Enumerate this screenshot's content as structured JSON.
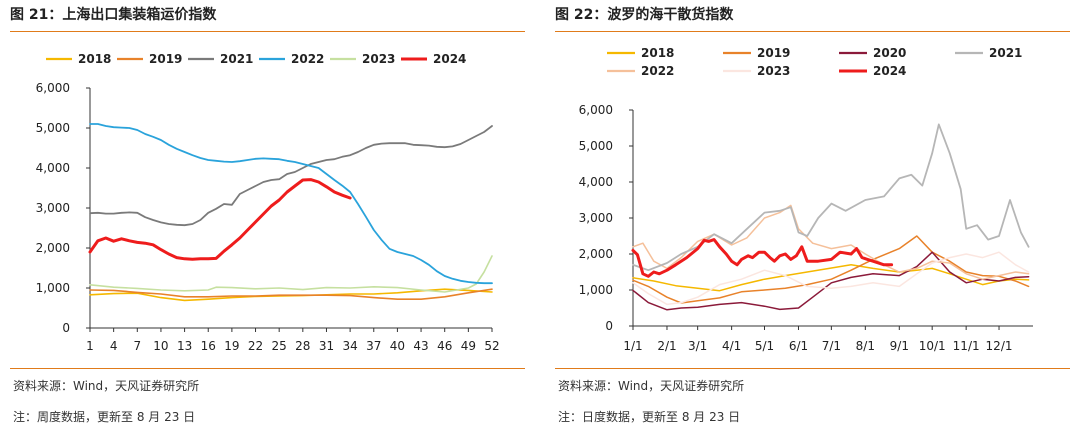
{
  "charts": [
    {
      "title": "图 21：上海出口集装箱运价指数",
      "source": "资料来源：Wind，天风证券研究所",
      "note": "注：周度数据，更新至 8 月 23 日"
    },
    {
      "title": "图 22：波罗的海干散货指数",
      "source": "资料来源：Wind，天风证券研究所",
      "note": "注：日度数据，更新至 8 月 23 日"
    }
  ],
  "chart_data": [
    {
      "type": "line",
      "title": "",
      "xlabel": "",
      "ylabel": "",
      "x_ticks": [
        1,
        4,
        7,
        10,
        13,
        16,
        19,
        22,
        25,
        28,
        31,
        34,
        37,
        40,
        43,
        46,
        49,
        52
      ],
      "xlim": [
        1,
        52
      ],
      "ylim": [
        0,
        6000
      ],
      "y_ticks": [
        "0",
        "1,000",
        "2,000",
        "3,000",
        "4,000",
        "5,000",
        "6,000"
      ],
      "y_tick_values": [
        0,
        1000,
        2000,
        3000,
        4000,
        5000,
        6000
      ],
      "grid": false,
      "legend": "top",
      "series": [
        {
          "name": "2018",
          "color": "#f5b800",
          "width": 1.6,
          "x": [
            1,
            4,
            7,
            10,
            13,
            16,
            19,
            22,
            25,
            28,
            31,
            34,
            37,
            40,
            43,
            46,
            49,
            52
          ],
          "y": [
            830,
            860,
            870,
            760,
            690,
            720,
            760,
            790,
            800,
            810,
            830,
            850,
            850,
            880,
            930,
            970,
            940,
            900
          ]
        },
        {
          "name": "2019",
          "color": "#e8822a",
          "width": 1.6,
          "x": [
            1,
            4,
            7,
            10,
            13,
            16,
            19,
            22,
            25,
            28,
            31,
            34,
            37,
            40,
            43,
            46,
            49,
            52
          ],
          "y": [
            950,
            940,
            890,
            850,
            780,
            780,
            800,
            800,
            820,
            820,
            820,
            810,
            760,
            720,
            720,
            780,
            880,
            970
          ]
        },
        {
          "name": "2021",
          "color": "#7a7a7a",
          "width": 1.8,
          "x": [
            1,
            2,
            3,
            4,
            5,
            6,
            7,
            8,
            9,
            10,
            11,
            12,
            13,
            14,
            15,
            16,
            17,
            18,
            19,
            20,
            21,
            22,
            23,
            24,
            25,
            26,
            27,
            28,
            29,
            30,
            31,
            32,
            33,
            34,
            35,
            36,
            37,
            38,
            39,
            40,
            41,
            42,
            43,
            44,
            45,
            46,
            47,
            48,
            49,
            50,
            51,
            52
          ],
          "y": [
            2870,
            2880,
            2860,
            2860,
            2880,
            2890,
            2880,
            2770,
            2700,
            2640,
            2600,
            2580,
            2570,
            2600,
            2700,
            2880,
            2980,
            3100,
            3080,
            3350,
            3450,
            3550,
            3650,
            3700,
            3720,
            3850,
            3900,
            4000,
            4100,
            4150,
            4200,
            4220,
            4280,
            4320,
            4400,
            4500,
            4580,
            4610,
            4620,
            4620,
            4620,
            4580,
            4570,
            4560,
            4530,
            4520,
            4540,
            4600,
            4700,
            4800,
            4900,
            5050
          ]
        },
        {
          "name": "2022",
          "color": "#2aa3db",
          "width": 1.8,
          "x": [
            1,
            2,
            3,
            4,
            5,
            6,
            7,
            8,
            9,
            10,
            11,
            12,
            13,
            14,
            15,
            16,
            17,
            18,
            19,
            20,
            21,
            22,
            23,
            24,
            25,
            26,
            27,
            28,
            29,
            30,
            31,
            32,
            33,
            34,
            35,
            36,
            37,
            38,
            39,
            40,
            41,
            42,
            43,
            44,
            45,
            46,
            47,
            48,
            49,
            50,
            51,
            52
          ],
          "y": [
            5100,
            5100,
            5050,
            5020,
            5010,
            5000,
            4950,
            4850,
            4780,
            4700,
            4580,
            4480,
            4400,
            4320,
            4250,
            4200,
            4180,
            4160,
            4150,
            4170,
            4200,
            4230,
            4240,
            4230,
            4220,
            4180,
            4150,
            4100,
            4050,
            4000,
            3850,
            3700,
            3560,
            3400,
            3100,
            2780,
            2450,
            2200,
            1980,
            1900,
            1850,
            1800,
            1700,
            1580,
            1420,
            1300,
            1230,
            1180,
            1150,
            1130,
            1120,
            1120
          ]
        },
        {
          "name": "2023",
          "color": "#c6e0a0",
          "width": 1.6,
          "x": [
            1,
            4,
            7,
            10,
            13,
            16,
            17,
            19,
            22,
            25,
            28,
            31,
            34,
            37,
            40,
            43,
            46,
            49,
            50,
            51,
            52
          ],
          "y": [
            1080,
            1020,
            990,
            950,
            930,
            950,
            1020,
            1010,
            980,
            1000,
            960,
            1010,
            1000,
            1030,
            1010,
            950,
            900,
            1000,
            1100,
            1400,
            1800
          ]
        },
        {
          "name": "2024",
          "color": "#ee1c1c",
          "width": 3,
          "x": [
            1,
            2,
            3,
            4,
            5,
            6,
            7,
            8,
            9,
            10,
            11,
            12,
            13,
            14,
            15,
            16,
            17,
            18,
            19,
            20,
            21,
            22,
            23,
            24,
            25,
            26,
            27,
            28,
            29,
            30,
            31,
            32,
            33,
            34
          ],
          "y": [
            1900,
            2180,
            2250,
            2170,
            2230,
            2180,
            2140,
            2120,
            2080,
            1960,
            1850,
            1760,
            1730,
            1720,
            1730,
            1730,
            1740,
            1920,
            2080,
            2250,
            2450,
            2650,
            2850,
            3050,
            3200,
            3400,
            3550,
            3700,
            3710,
            3650,
            3530,
            3400,
            3320,
            3250
          ]
        }
      ]
    },
    {
      "type": "line",
      "title": "",
      "xlabel": "",
      "ylabel": "",
      "x_ticks": [
        "1/1",
        "2/1",
        "3/1",
        "4/1",
        "5/1",
        "6/1",
        "7/1",
        "8/1",
        "9/1",
        "10/1",
        "11/1",
        "12/1"
      ],
      "x_tick_values": [
        1,
        32,
        60,
        91,
        121,
        152,
        182,
        213,
        244,
        274,
        305,
        335
      ],
      "xlim": [
        1,
        366
      ],
      "ylim": [
        0,
        6000
      ],
      "y_ticks": [
        "0",
        "1,000",
        "2,000",
        "3,000",
        "4,000",
        "5,000",
        "6,000"
      ],
      "y_tick_values": [
        0,
        1000,
        2000,
        3000,
        4000,
        5000,
        6000
      ],
      "grid": false,
      "legend": "top",
      "series": [
        {
          "name": "2018",
          "color": "#f5b800",
          "width": 1.5,
          "x": [
            1,
            20,
            40,
            60,
            80,
            100,
            121,
            140,
            160,
            180,
            200,
            220,
            244,
            260,
            274,
            290,
            305,
            320,
            335,
            350,
            362
          ],
          "y": [
            1340,
            1250,
            1120,
            1050,
            980,
            1150,
            1300,
            1400,
            1500,
            1600,
            1700,
            1600,
            1500,
            1550,
            1600,
            1450,
            1300,
            1150,
            1250,
            1300,
            1280
          ]
        },
        {
          "name": "2019",
          "color": "#e8822a",
          "width": 1.5,
          "x": [
            1,
            15,
            32,
            45,
            60,
            80,
            100,
            121,
            140,
            160,
            182,
            200,
            220,
            244,
            260,
            274,
            290,
            305,
            320,
            335,
            350,
            362
          ],
          "y": [
            1270,
            1100,
            800,
            640,
            700,
            780,
            950,
            1000,
            1050,
            1150,
            1300,
            1550,
            1850,
            2150,
            2500,
            2050,
            1800,
            1500,
            1400,
            1380,
            1250,
            1100
          ]
        },
        {
          "name": "2020",
          "color": "#8b1a3a",
          "width": 1.5,
          "x": [
            1,
            15,
            32,
            45,
            60,
            80,
            100,
            121,
            135,
            152,
            165,
            182,
            200,
            220,
            244,
            260,
            274,
            290,
            305,
            320,
            335,
            350,
            362
          ],
          "y": [
            990,
            650,
            450,
            500,
            520,
            600,
            650,
            550,
            460,
            500,
            800,
            1200,
            1350,
            1450,
            1400,
            1650,
            2050,
            1500,
            1200,
            1300,
            1250,
            1350,
            1370
          ]
        },
        {
          "name": "2021",
          "color": "#b6b6b6",
          "width": 1.8,
          "x": [
            1,
            15,
            32,
            45,
            60,
            75,
            91,
            105,
            121,
            135,
            145,
            152,
            160,
            170,
            182,
            195,
            213,
            230,
            244,
            255,
            265,
            274,
            280,
            290,
            300,
            305,
            315,
            325,
            335,
            345,
            355,
            362
          ],
          "y": [
            1700,
            1550,
            1750,
            2000,
            2200,
            2550,
            2300,
            2700,
            3150,
            3200,
            3300,
            2600,
            2500,
            3000,
            3400,
            3200,
            3500,
            3600,
            4100,
            4200,
            3900,
            4800,
            5600,
            4800,
            3800,
            2700,
            2800,
            2400,
            2500,
            3500,
            2600,
            2200
          ]
        },
        {
          "name": "2022",
          "color": "#f5c09a",
          "width": 1.5,
          "x": [
            1,
            10,
            20,
            32,
            45,
            60,
            75,
            91,
            105,
            121,
            135,
            145,
            152,
            165,
            182,
            200,
            213,
            230,
            244,
            260,
            274,
            290,
            305,
            320,
            335,
            350,
            362
          ],
          "y": [
            2200,
            2300,
            1800,
            1600,
            1900,
            2350,
            2550,
            2250,
            2450,
            3000,
            3150,
            3350,
            2700,
            2300,
            2150,
            2250,
            2000,
            1700,
            1500,
            1600,
            1800,
            1750,
            1450,
            1300,
            1400,
            1500,
            1450
          ]
        },
        {
          "name": "2023",
          "color": "#fbe6e0",
          "width": 1.5,
          "x": [
            1,
            15,
            32,
            45,
            60,
            80,
            100,
            121,
            140,
            160,
            182,
            200,
            220,
            244,
            260,
            274,
            290,
            305,
            320,
            335,
            350,
            362
          ],
          "y": [
            1200,
            900,
            600,
            650,
            800,
            1150,
            1300,
            1550,
            1400,
            1100,
            1050,
            1100,
            1200,
            1100,
            1450,
            1750,
            1900,
            2000,
            1900,
            2050,
            1700,
            1500
          ]
        },
        {
          "name": "2024",
          "color": "#ee1c1c",
          "width": 3,
          "x": [
            1,
            5,
            10,
            15,
            20,
            25,
            32,
            40,
            50,
            60,
            66,
            70,
            75,
            80,
            86,
            91,
            96,
            100,
            106,
            110,
            116,
            121,
            126,
            130,
            135,
            140,
            145,
            150,
            155,
            160,
            170,
            182,
            190,
            200,
            205,
            210,
            215,
            220,
            230,
            237
          ],
          "y": [
            2100,
            1980,
            1450,
            1380,
            1500,
            1450,
            1550,
            1700,
            1900,
            2150,
            2380,
            2350,
            2400,
            2200,
            2000,
            1800,
            1700,
            1850,
            1950,
            1900,
            2050,
            2050,
            1900,
            1800,
            1950,
            2000,
            1850,
            1950,
            2200,
            1800,
            1800,
            1850,
            2050,
            2000,
            2150,
            1900,
            1850,
            1800,
            1700,
            1700
          ]
        }
      ]
    }
  ]
}
